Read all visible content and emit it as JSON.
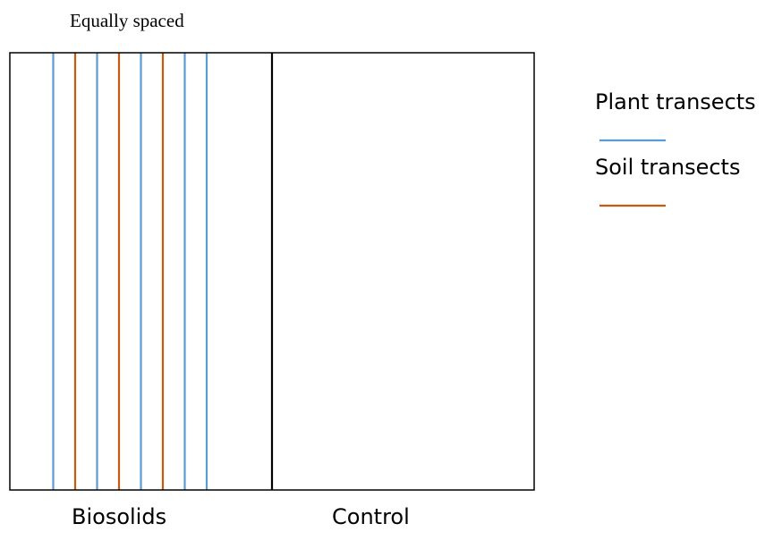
{
  "annotation": {
    "text": "Equally spaced"
  },
  "plots": [
    {
      "label": "Biosolids"
    },
    {
      "label": "Control"
    }
  ],
  "legend": [
    {
      "label": "Plant transects",
      "color": "#5b9bd5"
    },
    {
      "label": "Soil transects",
      "color": "#c55a11"
    }
  ],
  "transects": [
    {
      "type": "plant",
      "color": "#5b9bd5"
    },
    {
      "type": "soil",
      "color": "#c55a11"
    },
    {
      "type": "plant",
      "color": "#5b9bd5"
    },
    {
      "type": "soil",
      "color": "#c55a11"
    },
    {
      "type": "plant",
      "color": "#5b9bd5"
    },
    {
      "type": "soil",
      "color": "#c55a11"
    },
    {
      "type": "plant",
      "color": "#5b9bd5"
    },
    {
      "type": "plant",
      "color": "#5b9bd5"
    }
  ],
  "colors": {
    "outline": "#000000"
  }
}
